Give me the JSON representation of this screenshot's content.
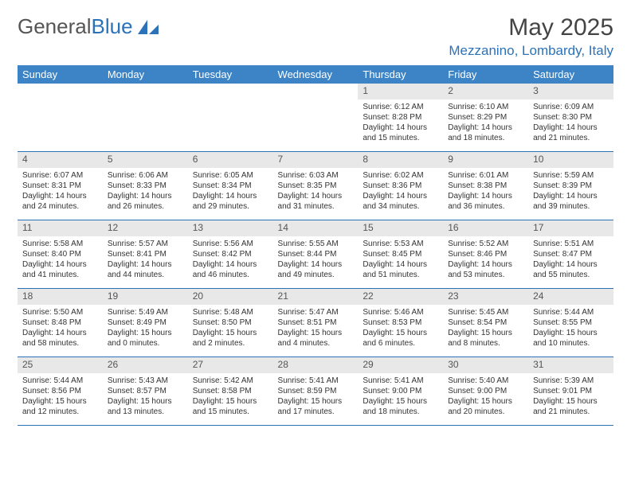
{
  "logo": {
    "text1": "General",
    "text2": "Blue"
  },
  "title": "May 2025",
  "location": "Mezzanino, Lombardy, Italy",
  "colors": {
    "header_bg": "#3c84c6",
    "accent": "#2b72b9",
    "daynum_bg": "#e8e8e8",
    "text": "#333333"
  },
  "weekdays": [
    "Sunday",
    "Monday",
    "Tuesday",
    "Wednesday",
    "Thursday",
    "Friday",
    "Saturday"
  ],
  "weeks": [
    {
      "nums": [
        "",
        "",
        "",
        "",
        "1",
        "2",
        "3"
      ],
      "cells": [
        null,
        null,
        null,
        null,
        {
          "sunrise": "Sunrise: 6:12 AM",
          "sunset": "Sunset: 8:28 PM",
          "day1": "Daylight: 14 hours",
          "day2": "and 15 minutes."
        },
        {
          "sunrise": "Sunrise: 6:10 AM",
          "sunset": "Sunset: 8:29 PM",
          "day1": "Daylight: 14 hours",
          "day2": "and 18 minutes."
        },
        {
          "sunrise": "Sunrise: 6:09 AM",
          "sunset": "Sunset: 8:30 PM",
          "day1": "Daylight: 14 hours",
          "day2": "and 21 minutes."
        }
      ]
    },
    {
      "nums": [
        "4",
        "5",
        "6",
        "7",
        "8",
        "9",
        "10"
      ],
      "cells": [
        {
          "sunrise": "Sunrise: 6:07 AM",
          "sunset": "Sunset: 8:31 PM",
          "day1": "Daylight: 14 hours",
          "day2": "and 24 minutes."
        },
        {
          "sunrise": "Sunrise: 6:06 AM",
          "sunset": "Sunset: 8:33 PM",
          "day1": "Daylight: 14 hours",
          "day2": "and 26 minutes."
        },
        {
          "sunrise": "Sunrise: 6:05 AM",
          "sunset": "Sunset: 8:34 PM",
          "day1": "Daylight: 14 hours",
          "day2": "and 29 minutes."
        },
        {
          "sunrise": "Sunrise: 6:03 AM",
          "sunset": "Sunset: 8:35 PM",
          "day1": "Daylight: 14 hours",
          "day2": "and 31 minutes."
        },
        {
          "sunrise": "Sunrise: 6:02 AM",
          "sunset": "Sunset: 8:36 PM",
          "day1": "Daylight: 14 hours",
          "day2": "and 34 minutes."
        },
        {
          "sunrise": "Sunrise: 6:01 AM",
          "sunset": "Sunset: 8:38 PM",
          "day1": "Daylight: 14 hours",
          "day2": "and 36 minutes."
        },
        {
          "sunrise": "Sunrise: 5:59 AM",
          "sunset": "Sunset: 8:39 PM",
          "day1": "Daylight: 14 hours",
          "day2": "and 39 minutes."
        }
      ]
    },
    {
      "nums": [
        "11",
        "12",
        "13",
        "14",
        "15",
        "16",
        "17"
      ],
      "cells": [
        {
          "sunrise": "Sunrise: 5:58 AM",
          "sunset": "Sunset: 8:40 PM",
          "day1": "Daylight: 14 hours",
          "day2": "and 41 minutes."
        },
        {
          "sunrise": "Sunrise: 5:57 AM",
          "sunset": "Sunset: 8:41 PM",
          "day1": "Daylight: 14 hours",
          "day2": "and 44 minutes."
        },
        {
          "sunrise": "Sunrise: 5:56 AM",
          "sunset": "Sunset: 8:42 PM",
          "day1": "Daylight: 14 hours",
          "day2": "and 46 minutes."
        },
        {
          "sunrise": "Sunrise: 5:55 AM",
          "sunset": "Sunset: 8:44 PM",
          "day1": "Daylight: 14 hours",
          "day2": "and 49 minutes."
        },
        {
          "sunrise": "Sunrise: 5:53 AM",
          "sunset": "Sunset: 8:45 PM",
          "day1": "Daylight: 14 hours",
          "day2": "and 51 minutes."
        },
        {
          "sunrise": "Sunrise: 5:52 AM",
          "sunset": "Sunset: 8:46 PM",
          "day1": "Daylight: 14 hours",
          "day2": "and 53 minutes."
        },
        {
          "sunrise": "Sunrise: 5:51 AM",
          "sunset": "Sunset: 8:47 PM",
          "day1": "Daylight: 14 hours",
          "day2": "and 55 minutes."
        }
      ]
    },
    {
      "nums": [
        "18",
        "19",
        "20",
        "21",
        "22",
        "23",
        "24"
      ],
      "cells": [
        {
          "sunrise": "Sunrise: 5:50 AM",
          "sunset": "Sunset: 8:48 PM",
          "day1": "Daylight: 14 hours",
          "day2": "and 58 minutes."
        },
        {
          "sunrise": "Sunrise: 5:49 AM",
          "sunset": "Sunset: 8:49 PM",
          "day1": "Daylight: 15 hours",
          "day2": "and 0 minutes."
        },
        {
          "sunrise": "Sunrise: 5:48 AM",
          "sunset": "Sunset: 8:50 PM",
          "day1": "Daylight: 15 hours",
          "day2": "and 2 minutes."
        },
        {
          "sunrise": "Sunrise: 5:47 AM",
          "sunset": "Sunset: 8:51 PM",
          "day1": "Daylight: 15 hours",
          "day2": "and 4 minutes."
        },
        {
          "sunrise": "Sunrise: 5:46 AM",
          "sunset": "Sunset: 8:53 PM",
          "day1": "Daylight: 15 hours",
          "day2": "and 6 minutes."
        },
        {
          "sunrise": "Sunrise: 5:45 AM",
          "sunset": "Sunset: 8:54 PM",
          "day1": "Daylight: 15 hours",
          "day2": "and 8 minutes."
        },
        {
          "sunrise": "Sunrise: 5:44 AM",
          "sunset": "Sunset: 8:55 PM",
          "day1": "Daylight: 15 hours",
          "day2": "and 10 minutes."
        }
      ]
    },
    {
      "nums": [
        "25",
        "26",
        "27",
        "28",
        "29",
        "30",
        "31"
      ],
      "cells": [
        {
          "sunrise": "Sunrise: 5:44 AM",
          "sunset": "Sunset: 8:56 PM",
          "day1": "Daylight: 15 hours",
          "day2": "and 12 minutes."
        },
        {
          "sunrise": "Sunrise: 5:43 AM",
          "sunset": "Sunset: 8:57 PM",
          "day1": "Daylight: 15 hours",
          "day2": "and 13 minutes."
        },
        {
          "sunrise": "Sunrise: 5:42 AM",
          "sunset": "Sunset: 8:58 PM",
          "day1": "Daylight: 15 hours",
          "day2": "and 15 minutes."
        },
        {
          "sunrise": "Sunrise: 5:41 AM",
          "sunset": "Sunset: 8:59 PM",
          "day1": "Daylight: 15 hours",
          "day2": "and 17 minutes."
        },
        {
          "sunrise": "Sunrise: 5:41 AM",
          "sunset": "Sunset: 9:00 PM",
          "day1": "Daylight: 15 hours",
          "day2": "and 18 minutes."
        },
        {
          "sunrise": "Sunrise: 5:40 AM",
          "sunset": "Sunset: 9:00 PM",
          "day1": "Daylight: 15 hours",
          "day2": "and 20 minutes."
        },
        {
          "sunrise": "Sunrise: 5:39 AM",
          "sunset": "Sunset: 9:01 PM",
          "day1": "Daylight: 15 hours",
          "day2": "and 21 minutes."
        }
      ]
    }
  ]
}
